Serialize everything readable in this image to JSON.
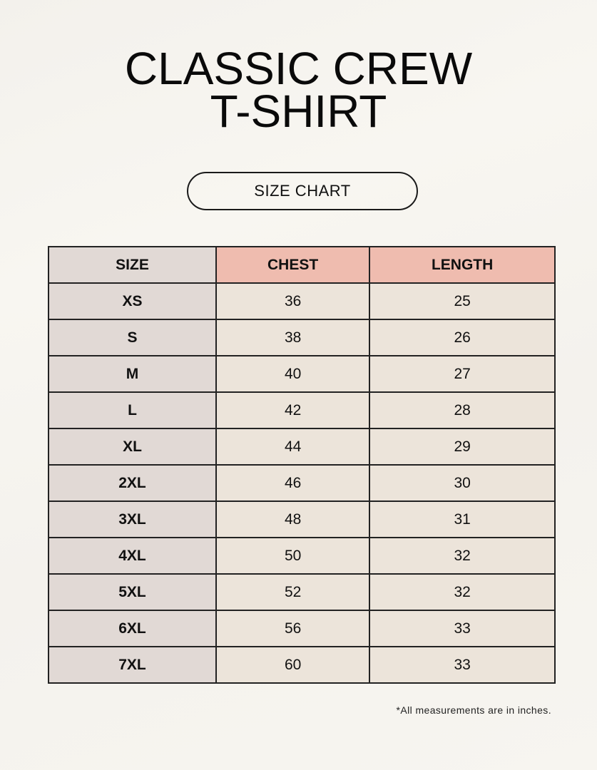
{
  "title_line1": "CLASSIC CREW",
  "title_line2": "T-SHIRT",
  "badge": "SIZE CHART",
  "colors": {
    "header_accent": "#efbcaf",
    "size_column": "#e1d9d5",
    "cells": "#ece4da"
  },
  "table": {
    "headers": [
      "SIZE",
      "CHEST",
      "LENGTH"
    ],
    "rows": [
      [
        "XS",
        "36",
        "25"
      ],
      [
        "S",
        "38",
        "26"
      ],
      [
        "M",
        "40",
        "27"
      ],
      [
        "L",
        "42",
        "28"
      ],
      [
        "XL",
        "44",
        "29"
      ],
      [
        "2XL",
        "46",
        "30"
      ],
      [
        "3XL",
        "48",
        "31"
      ],
      [
        "4XL",
        "50",
        "32"
      ],
      [
        "5XL",
        "52",
        "32"
      ],
      [
        "6XL",
        "56",
        "33"
      ],
      [
        "7XL",
        "60",
        "33"
      ]
    ]
  },
  "footnote": "*All measurements are in inches."
}
